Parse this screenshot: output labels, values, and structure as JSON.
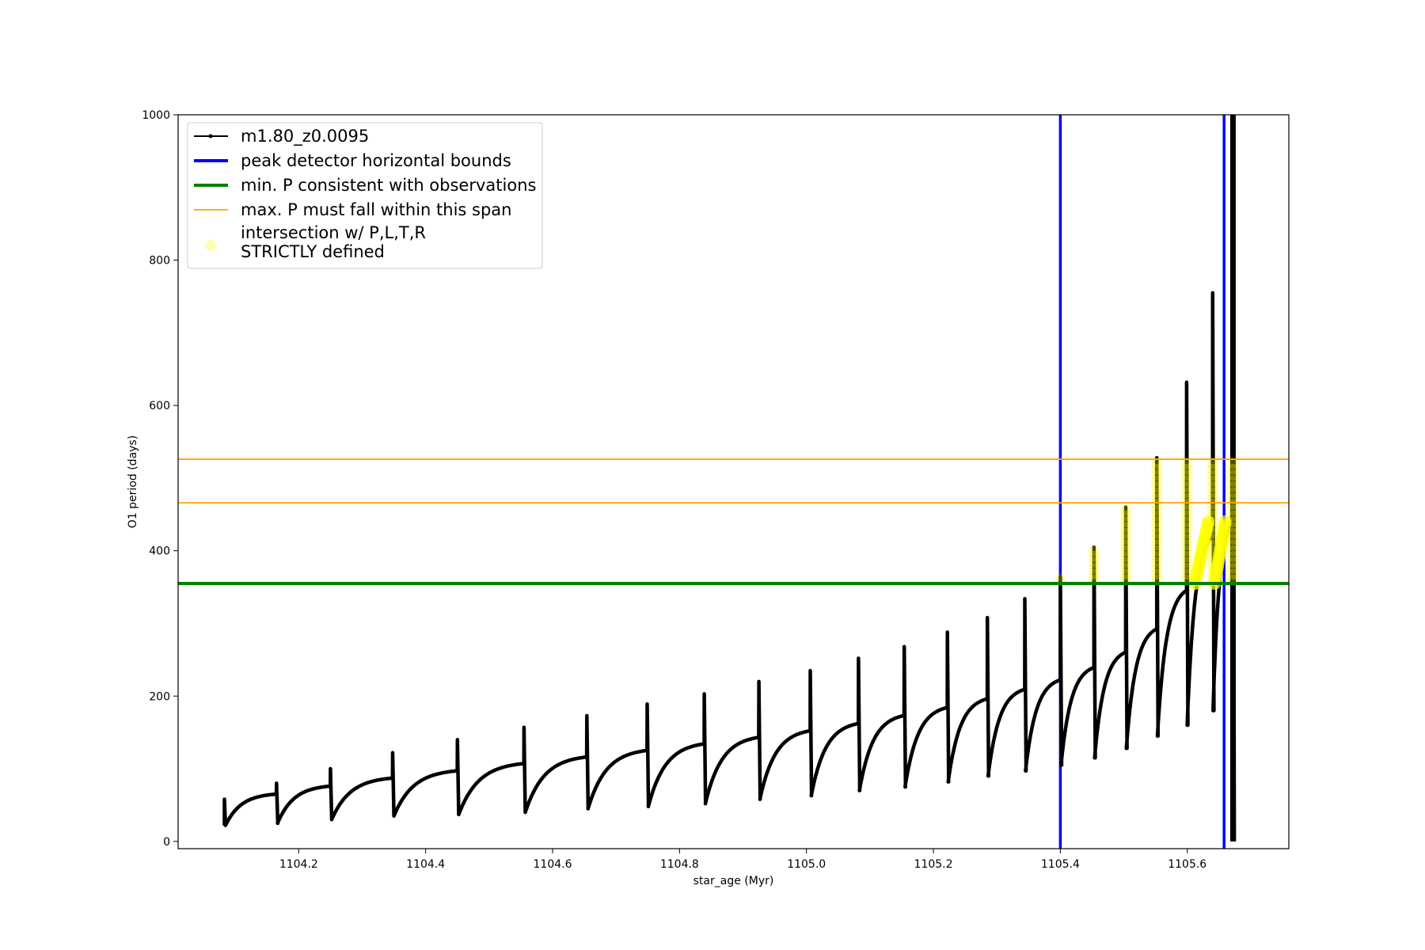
{
  "chart_data": {
    "type": "line",
    "xlabel": "star_age (Myr)",
    "ylabel": "O1 period (days)",
    "xlim": [
      1104.01,
      1105.76
    ],
    "ylim": [
      -10,
      1000
    ],
    "x_ticks": [
      1104.2,
      1104.4,
      1104.6,
      1104.8,
      1105.0,
      1105.2,
      1105.4,
      1105.6
    ],
    "x_tick_labels": [
      "1104.2",
      "1104.4",
      "1104.6",
      "1104.8",
      "1105.0",
      "1105.2",
      "1105.4",
      "1105.6"
    ],
    "y_ticks": [
      0,
      200,
      400,
      600,
      800,
      1000
    ],
    "y_tick_labels": [
      "0",
      "200",
      "400",
      "600",
      "800",
      "1000"
    ],
    "grid": false,
    "legend_placement": "upper-left",
    "legend": [
      {
        "label": "m1.80_z0.0095",
        "kind": "line-marker",
        "color": "#000000"
      },
      {
        "label": "peak detector horizontal bounds",
        "kind": "line",
        "color": "#0000ff"
      },
      {
        "label": "min. P consistent with observations",
        "kind": "line",
        "color": "#008000"
      },
      {
        "label": "max. P must fall within this span",
        "kind": "line",
        "color": "#ffa500"
      },
      {
        "label": "intersection w/ P,L,T,R",
        "label_line2": "STRICTLY defined",
        "kind": "marker",
        "color": "#ffff00"
      }
    ],
    "series": [
      {
        "name": "m1.80_z0.0095",
        "color": "#000000",
        "pulses": [
          {
            "start": 1104.083,
            "base": 22,
            "top": 65,
            "spike": 58
          },
          {
            "start": 1104.165,
            "base": 25,
            "top": 76,
            "spike": 80
          },
          {
            "start": 1104.25,
            "base": 30,
            "top": 87,
            "spike": 100
          },
          {
            "start": 1104.348,
            "base": 35,
            "top": 97,
            "spike": 122
          },
          {
            "start": 1104.45,
            "base": 37,
            "top": 107,
            "spike": 140
          },
          {
            "start": 1104.555,
            "base": 40,
            "top": 116,
            "spike": 157
          },
          {
            "start": 1104.654,
            "base": 45,
            "top": 125,
            "spike": 173
          },
          {
            "start": 1104.749,
            "base": 48,
            "top": 134,
            "spike": 189
          },
          {
            "start": 1104.839,
            "base": 52,
            "top": 143,
            "spike": 203
          },
          {
            "start": 1104.925,
            "base": 58,
            "top": 152,
            "spike": 220
          },
          {
            "start": 1105.006,
            "base": 63,
            "top": 162,
            "spike": 235
          },
          {
            "start": 1105.082,
            "base": 70,
            "top": 173,
            "spike": 252
          },
          {
            "start": 1105.154,
            "base": 75,
            "top": 184,
            "spike": 268
          },
          {
            "start": 1105.222,
            "base": 82,
            "top": 196,
            "spike": 288
          },
          {
            "start": 1105.285,
            "base": 90,
            "top": 209,
            "spike": 308
          },
          {
            "start": 1105.344,
            "base": 97,
            "top": 222,
            "spike": 334
          },
          {
            "start": 1105.4,
            "base": 105,
            "top": 239,
            "spike": 365
          },
          {
            "start": 1105.453,
            "base": 115,
            "top": 260,
            "spike": 405
          },
          {
            "start": 1105.503,
            "base": 128,
            "top": 292,
            "spike": 460
          },
          {
            "start": 1105.552,
            "base": 145,
            "top": 345,
            "spike": 528
          },
          {
            "start": 1105.599,
            "base": 160,
            "top": 420,
            "spike": 632
          },
          {
            "start": 1105.64,
            "base": 180,
            "top": 440,
            "spike": 755
          }
        ],
        "end_x": 1105.672,
        "end_spike_max": 1000,
        "end_min": 0
      }
    ],
    "vlines": [
      {
        "x": 1105.4,
        "color": "#0000ff",
        "label": "peak detector horizontal bounds"
      },
      {
        "x": 1105.658,
        "color": "#0000ff",
        "label": "peak detector horizontal bounds"
      }
    ],
    "hlines": [
      {
        "y": 355,
        "color": "#008000",
        "label": "min. P consistent with observations"
      },
      {
        "y": 526,
        "color": "#ffa500",
        "label": "max. P must fall within this span"
      },
      {
        "y": 466,
        "color": "#ffa500",
        "label": "max. P must fall within this span"
      }
    ],
    "highlight": {
      "color": "#ffff00",
      "ymin": 355,
      "ymax": 526
    }
  }
}
